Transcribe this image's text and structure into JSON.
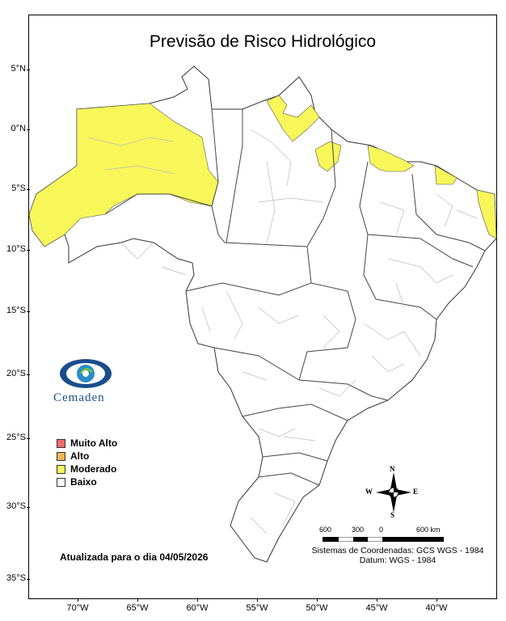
{
  "title": "Previsão de Risco Hidrológico",
  "latitude_labels": [
    "5°N",
    "0°N",
    "5°S",
    "10°S",
    "15°S",
    "20°S",
    "25°S",
    "30°S",
    "35°S"
  ],
  "longitude_labels": [
    "70°W",
    "65°W",
    "60°W",
    "55°W",
    "50°W",
    "45°W",
    "40°W"
  ],
  "logo": {
    "text": "Cemaden"
  },
  "legend": {
    "items": [
      {
        "label": "Muito Alto",
        "color": "#f26b6b"
      },
      {
        "label": "Alto",
        "color": "#f7b85a"
      },
      {
        "label": "Moderado",
        "color": "#f7f75a"
      },
      {
        "label": "Baixo",
        "color": "#ffffff"
      }
    ]
  },
  "updated_text": "Atualizada para o dia 04/05/2026",
  "scale": {
    "labels": [
      "600",
      "300",
      "0",
      "600 km"
    ]
  },
  "coordinate_info": {
    "line1": "Sistemas de Coordenadas: GCS WGS - 1984",
    "line2": "Datum: WGS - 1984"
  },
  "compass": {
    "n": "N",
    "s": "S",
    "e": "E",
    "w": "W"
  },
  "colors": {
    "moderado": "#f7f75a",
    "border": "#444444",
    "subborder": "#bbbbbb"
  }
}
